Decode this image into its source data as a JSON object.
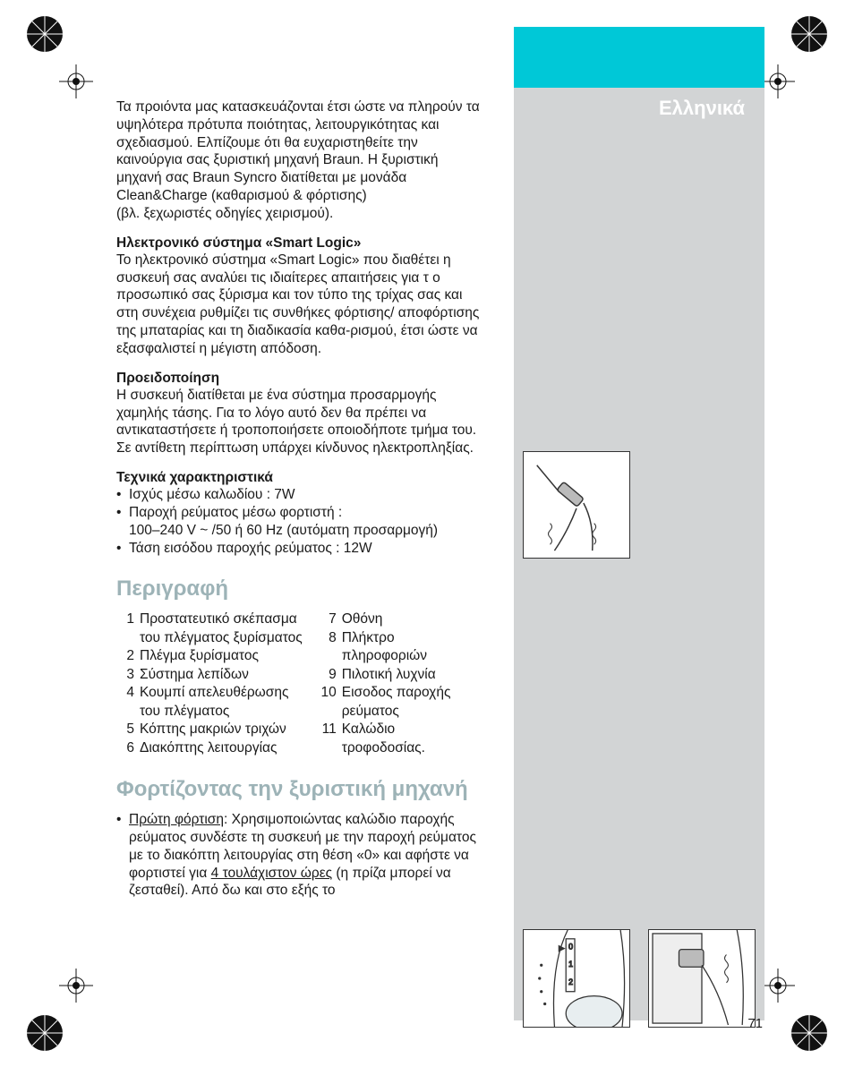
{
  "colors": {
    "cyan": "#00c8d7",
    "grey": "#d2d4d5",
    "text": "#1a1a1a",
    "white": "#ffffff",
    "section_h": "#9db3b7"
  },
  "lang_header": "Ελληνικά",
  "intro": "Τα προιόντα μας κατασκευάζονται έτσι ώστε να πληρούν τα υψηλότερα πρότυπα ποιότητας, λειτουργικότητας και σχεδιασμού. Ελπίζουμε ότι θα ευχαριστηθείτε την καινούργια σας ξυριστική μηχανή Braun. Η ξυριστική μηχανή σας Braun Syncro διατίθεται με μονάδα Clean&Charge (καθαρισμού & φόρτισης)",
  "intro_note": "(βλ. ξεχωριστές οδηγίες χειρισμού).",
  "smart_heading": "Ηλεκτρονικό σύστημα «Smart Logic»",
  "smart_body": "Το ηλεκτρονικό σύστημα «Smart Logic» που διαθέτει η συσκευή σας αναλύει τις ιδιαίτερες απαιτήσεις για τ ο προσωπικό σας ξύρισμα και τον τύπο της τρίχας σας και στη συνέχεια ρυθμίζει τις συνθήκες φόρτισης/ αποφόρτισης της μπαταρίας και τη διαδικασία καθα-ρισμού, έτσι ώστε να εξασφαλιστεί η μέγιστη απόδοση.",
  "warn_heading": "Προειδοποίηση",
  "warn_body": "Η συσκευή διατίθεται με ένα σύστημα προσαρμογής χαμηλής τάσης. Για το λόγο αυτό δεν θα πρέπει να αντικαταστήσετε ή τροποποιήσετε οποιοδήποτε τμήμα του. Σε αντίθετη περίπτωση υπάρχει κίνδυνος ηλεκτροπληξίας.",
  "tech_heading": "Τεχνικά χαρακτηριστικά",
  "tech_items": [
    "Ισχύς μέσω καλωδίου : 7W",
    "Παροχή ρεύματος μέσω φορτιστή :",
    "Τάση εισόδου παροχής ρεύματος : 12W"
  ],
  "tech_sub2": "100–240 V ~ /50 ή 60 Hz (αυτόματη προσαρμογή)",
  "section_description": "Περιγραφή",
  "desc_left": [
    {
      "n": "1",
      "t": "Προστατευτικό σκέπασμα"
    },
    {
      "n": "",
      "t": "του πλέγματος ξυρίσματος"
    },
    {
      "n": "2",
      "t": "Πλέγμα ξυρίσματος"
    },
    {
      "n": "3",
      "t": "Σύστημα λεπίδων"
    },
    {
      "n": "4",
      "t": "Κουμπί απελευθέρωσης"
    },
    {
      "n": "",
      "t": "του πλέγματος"
    },
    {
      "n": "5",
      "t": "Κόπτης μακριών τριχών"
    },
    {
      "n": "6",
      "t": "Διακόπτης λειτουργίας"
    }
  ],
  "desc_right": [
    {
      "n": "7",
      "t": "Οθόνη"
    },
    {
      "n": "8",
      "t": "Πλήκτρο"
    },
    {
      "n": "",
      "t": "πληροφοριών"
    },
    {
      "n": "9",
      "t": "Πιλοτική λυχνία"
    },
    {
      "n": "10",
      "t": "Εισοδος παροχής"
    },
    {
      "n": "",
      "t": "ρεύματος"
    },
    {
      "n": "11",
      "t": "Καλώδιο"
    },
    {
      "n": "",
      "t": "τροφοδοσίας."
    }
  ],
  "section_charging": "Φορτίζοντας την ξυριστική μηχανή",
  "charging_ul1": "Πρώτη φόρτιση",
  "charging_text1": ": Χρησιμοποιώντας καλώδιο παροχής ρεύματος συνδέστε τη συσκευή με την παροχή ρεύματος με το διακόπτη λειτουργίας στη θέση «0» και αφήστε να φορτιστεί για ",
  "charging_ul2": "4 τουλάχιστον ώρες",
  "charging_text2": " (η πρίζα μπορεί να ζεσταθεί). Από δω και στο εξής το",
  "page_number": "71"
}
